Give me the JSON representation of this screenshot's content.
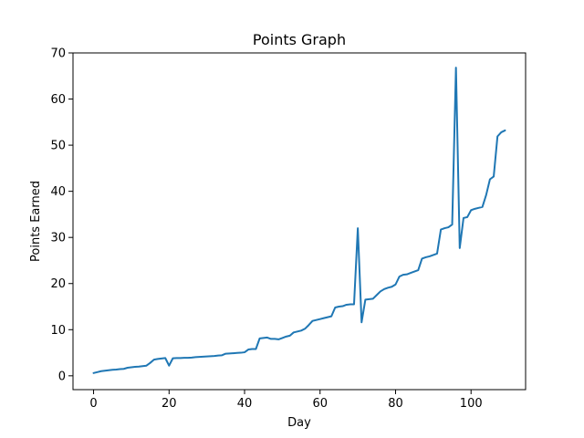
{
  "chart_data": {
    "type": "line",
    "title": "Points Graph",
    "xlabel": "Day",
    "ylabel": "Points Earned",
    "xlim": [
      -5.45,
      114.45
    ],
    "ylim": [
      -3,
      70
    ],
    "x_ticks": [
      0,
      20,
      40,
      60,
      80,
      100
    ],
    "y_ticks": [
      0,
      10,
      20,
      30,
      40,
      50,
      60,
      70
    ],
    "grid": false,
    "legend": "none",
    "series_color": "#1f77b4",
    "series": [
      {
        "x": [
          0,
          1,
          2,
          3,
          4,
          5,
          6,
          7,
          8,
          9,
          10,
          11,
          12,
          13,
          14,
          15,
          16,
          17,
          18,
          19,
          20,
          21,
          22,
          23,
          24,
          25,
          26,
          27,
          28,
          29,
          30,
          31,
          32,
          33,
          34,
          35,
          36,
          37,
          38,
          39,
          40,
          41,
          42,
          43,
          44,
          45,
          46,
          47,
          48,
          49,
          50,
          51,
          52,
          53,
          54,
          55,
          56,
          57,
          58,
          59,
          60,
          61,
          62,
          63,
          64,
          65,
          66,
          67,
          68,
          69,
          70,
          71,
          72,
          73,
          74,
          75,
          76,
          77,
          78,
          79,
          80,
          81,
          82,
          83,
          84,
          85,
          86,
          87,
          88,
          89,
          90,
          91,
          92,
          93,
          94,
          95,
          96,
          97,
          98,
          99,
          100,
          101,
          102,
          103,
          104,
          105,
          106,
          107,
          108,
          109
        ],
        "values": [
          0.6,
          0.8,
          1.0,
          1.1,
          1.2,
          1.3,
          1.35,
          1.45,
          1.5,
          1.75,
          1.85,
          1.95,
          2.0,
          2.1,
          2.2,
          2.8,
          3.5,
          3.65,
          3.75,
          3.85,
          2.2,
          3.8,
          3.85,
          3.85,
          3.9,
          3.9,
          3.95,
          4.05,
          4.1,
          4.15,
          4.2,
          4.25,
          4.3,
          4.4,
          4.45,
          4.8,
          4.85,
          4.9,
          4.95,
          5.0,
          5.1,
          5.7,
          5.8,
          5.8,
          8.1,
          8.2,
          8.3,
          8.0,
          8.0,
          7.9,
          8.2,
          8.5,
          8.7,
          9.4,
          9.6,
          9.8,
          10.2,
          11.0,
          11.9,
          12.1,
          12.3,
          12.5,
          12.7,
          12.9,
          14.8,
          15.0,
          15.1,
          15.4,
          15.5,
          15.5,
          32.0,
          11.6,
          16.5,
          16.6,
          16.7,
          17.5,
          18.3,
          18.8,
          19.1,
          19.3,
          19.8,
          21.5,
          21.9,
          22.0,
          22.3,
          22.6,
          22.9,
          25.4,
          25.7,
          25.9,
          26.2,
          26.5,
          31.7,
          32.0,
          32.2,
          32.8,
          66.8,
          27.7,
          34.2,
          34.4,
          35.9,
          36.2,
          36.4,
          36.6,
          39.2,
          42.6,
          43.2,
          51.9,
          52.8,
          53.2
        ]
      }
    ]
  }
}
